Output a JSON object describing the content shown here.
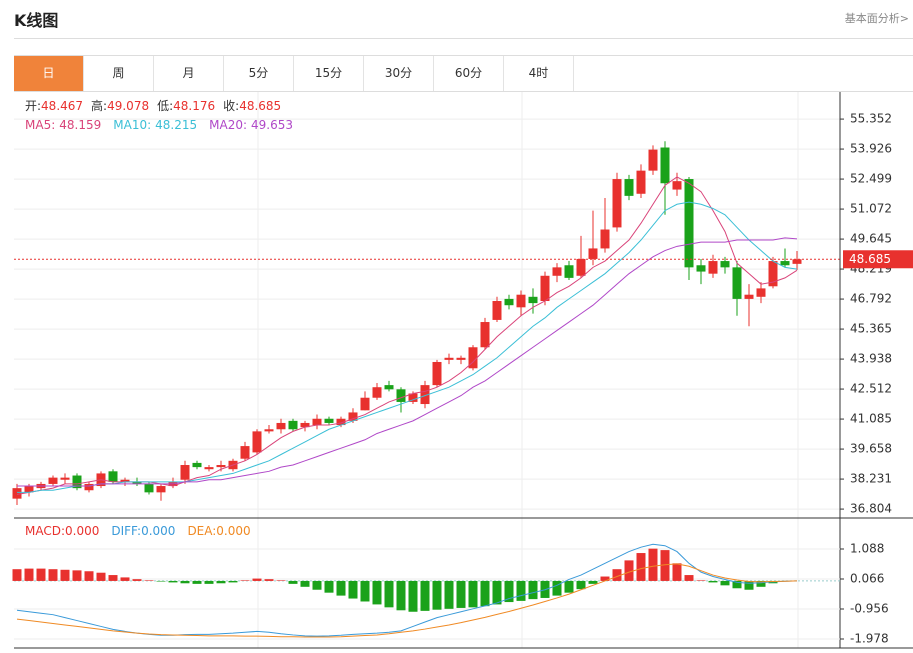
{
  "header": {
    "title": "K线图",
    "link": "基本面分析>"
  },
  "tabs": [
    "日",
    "周",
    "月",
    "5分",
    "15分",
    "30分",
    "60分",
    "4时"
  ],
  "active_tab": 0,
  "chart_data": [
    {
      "type": "candlestick",
      "ohlc_labels": [
        "开:",
        "高:",
        "低:",
        "收:"
      ],
      "up_color": "#e8312e",
      "down_color": "#1aa21a",
      "open": [
        37.3,
        37.6,
        37.8,
        38.0,
        38.2,
        38.4,
        37.7,
        37.9,
        38.6,
        38.1,
        38.1,
        38.0,
        37.6,
        37.9,
        38.2,
        39.0,
        38.7,
        38.8,
        38.7,
        39.2,
        39.5,
        40.5,
        40.6,
        41.0,
        40.7,
        40.8,
        41.1,
        40.8,
        41.0,
        41.5,
        42.1,
        42.7,
        42.5,
        41.9,
        41.8,
        42.7,
        43.9,
        43.9,
        43.5,
        44.5,
        45.8,
        46.8,
        46.4,
        46.9,
        46.7,
        47.9,
        48.4,
        47.9,
        48.7,
        49.2,
        50.2,
        52.5,
        51.8,
        52.9,
        54.0,
        52.0,
        52.5,
        48.4,
        48.0,
        48.6,
        48.3,
        46.8,
        46.9,
        47.4,
        48.6,
        48.467
      ],
      "high": [
        38.0,
        38.0,
        38.1,
        38.4,
        38.5,
        38.5,
        38.1,
        38.6,
        38.7,
        38.3,
        38.3,
        38.1,
        38.0,
        38.3,
        39.1,
        39.1,
        38.9,
        39.1,
        39.2,
        40.0,
        40.6,
        40.8,
        41.1,
        41.1,
        41.0,
        41.3,
        41.2,
        41.2,
        41.6,
        42.4,
        42.8,
        42.9,
        42.6,
        42.4,
        42.9,
        43.9,
        44.2,
        44.1,
        44.6,
        45.9,
        46.9,
        47.0,
        47.2,
        47.3,
        48.1,
        48.5,
        48.6,
        49.8,
        51.0,
        51.6,
        52.8,
        52.7,
        53.2,
        54.1,
        54.3,
        52.8,
        52.6,
        48.7,
        48.9,
        48.8,
        48.6,
        47.5,
        47.6,
        48.8,
        49.2,
        49.078
      ],
      "low": [
        37.0,
        37.4,
        37.7,
        37.9,
        38.0,
        37.7,
        37.6,
        37.8,
        38.0,
        37.9,
        37.9,
        37.5,
        37.2,
        37.8,
        38.0,
        38.7,
        38.6,
        38.6,
        38.6,
        39.1,
        39.4,
        40.4,
        40.4,
        40.5,
        40.5,
        40.6,
        40.8,
        40.7,
        40.9,
        41.5,
        42.0,
        42.4,
        41.4,
        41.8,
        41.6,
        42.6,
        43.7,
        43.7,
        43.4,
        44.4,
        45.7,
        46.3,
        46.0,
        46.1,
        46.5,
        47.6,
        47.7,
        47.8,
        48.4,
        49.0,
        50.0,
        51.5,
        51.6,
        52.7,
        50.8,
        51.7,
        47.7,
        47.5,
        47.8,
        48.0,
        46.0,
        45.5,
        46.6,
        47.3,
        48.3,
        48.176
      ],
      "close": [
        37.8,
        37.9,
        38.0,
        38.3,
        38.3,
        37.8,
        38.0,
        38.5,
        38.1,
        38.2,
        38.0,
        37.6,
        37.9,
        38.1,
        38.9,
        38.8,
        38.8,
        38.9,
        39.1,
        39.8,
        40.5,
        40.6,
        40.9,
        40.6,
        40.9,
        41.1,
        40.9,
        41.1,
        41.4,
        42.1,
        42.6,
        42.5,
        41.9,
        42.3,
        42.7,
        43.8,
        44.0,
        44.0,
        44.5,
        45.7,
        46.7,
        46.5,
        47.0,
        46.6,
        47.9,
        48.3,
        47.8,
        48.7,
        49.2,
        50.1,
        52.5,
        51.7,
        52.9,
        53.9,
        52.3,
        52.4,
        48.3,
        48.1,
        48.6,
        48.3,
        46.8,
        47.0,
        47.3,
        48.6,
        48.4,
        48.685
      ],
      "ma": [
        {
          "name": "MA5:",
          "color": "#d9447a",
          "values": [
            37.5,
            37.6,
            37.7,
            37.8,
            38.0,
            38.0,
            38.1,
            38.2,
            38.1,
            38.1,
            38.1,
            38.1,
            38.0,
            37.9,
            38.1,
            38.3,
            38.4,
            38.7,
            38.9,
            39.1,
            39.4,
            39.8,
            40.2,
            40.5,
            40.7,
            40.8,
            40.8,
            40.9,
            41.1,
            41.3,
            41.6,
            41.9,
            42.1,
            42.3,
            42.4,
            42.6,
            42.9,
            43.3,
            43.8,
            44.4,
            45.0,
            45.5,
            46.0,
            46.4,
            46.7,
            47.1,
            47.4,
            47.8,
            48.3,
            48.6,
            49.1,
            49.6,
            50.4,
            51.3,
            52.2,
            52.6,
            52.3,
            51.9,
            51.0,
            50.0,
            48.5,
            48.0,
            47.5,
            47.6,
            47.8,
            48.159
          ]
        },
        {
          "name": "MA10:",
          "color": "#3bbfd6",
          "values": [
            37.6,
            37.6,
            37.7,
            37.7,
            37.8,
            37.9,
            37.9,
            38.0,
            38.0,
            38.1,
            38.1,
            38.1,
            38.1,
            38.1,
            38.1,
            38.2,
            38.3,
            38.4,
            38.5,
            38.7,
            38.9,
            39.1,
            39.4,
            39.7,
            40.0,
            40.3,
            40.6,
            40.8,
            41.0,
            41.2,
            41.4,
            41.6,
            41.8,
            42.0,
            42.2,
            42.4,
            42.6,
            42.9,
            43.2,
            43.6,
            44.0,
            44.5,
            45.0,
            45.5,
            45.9,
            46.4,
            46.8,
            47.2,
            47.6,
            48.0,
            48.5,
            49.0,
            49.6,
            50.3,
            51.0,
            51.3,
            51.4,
            51.3,
            51.1,
            50.8,
            50.2,
            49.6,
            49.1,
            48.6,
            48.3,
            48.215
          ]
        },
        {
          "name": "MA20:",
          "color": "#b048c8",
          "values": [
            37.9,
            37.9,
            37.9,
            37.9,
            37.9,
            37.9,
            37.9,
            38.0,
            38.0,
            38.0,
            38.0,
            38.0,
            38.0,
            38.0,
            38.1,
            38.1,
            38.2,
            38.2,
            38.3,
            38.4,
            38.5,
            38.6,
            38.8,
            38.9,
            39.1,
            39.3,
            39.5,
            39.7,
            39.9,
            40.1,
            40.4,
            40.6,
            40.8,
            41.0,
            41.3,
            41.6,
            41.9,
            42.2,
            42.6,
            42.9,
            43.3,
            43.7,
            44.1,
            44.5,
            44.9,
            45.3,
            45.7,
            46.1,
            46.5,
            47.0,
            47.5,
            48.0,
            48.4,
            48.8,
            49.1,
            49.3,
            49.4,
            49.5,
            49.5,
            49.5,
            49.6,
            49.6,
            49.6,
            49.6,
            49.7,
            49.653
          ]
        }
      ],
      "last_color": "#e8312e",
      "ylim": [
        36.38,
        56.64
      ],
      "yticks": [
        36.804,
        38.231,
        39.658,
        41.085,
        42.512,
        43.938,
        45.365,
        46.792,
        48.219,
        49.645,
        51.072,
        52.499,
        53.926,
        55.352
      ],
      "grid": true
    },
    {
      "type": "macd",
      "legend": [
        {
          "text": "MACD:0.000",
          "color": "#e8312e"
        },
        {
          "text": "DIFF:0.000",
          "color": "#3a9ad9"
        },
        {
          "text": "DEA:0.000",
          "color": "#f08a24"
        }
      ],
      "up_color": "#e8312e",
      "down_color": "#1aa21a",
      "macd": [
        0.4,
        0.42,
        0.42,
        0.4,
        0.38,
        0.36,
        0.33,
        0.28,
        0.2,
        0.12,
        0.06,
        0.02,
        -0.02,
        -0.05,
        -0.08,
        -0.1,
        -0.1,
        -0.08,
        -0.05,
        0.02,
        0.08,
        0.06,
        0.02,
        -0.1,
        -0.2,
        -0.3,
        -0.4,
        -0.5,
        -0.6,
        -0.7,
        -0.8,
        -0.9,
        -1.0,
        -1.05,
        -1.02,
        -0.98,
        -0.95,
        -0.92,
        -0.9,
        -0.86,
        -0.8,
        -0.72,
        -0.68,
        -0.62,
        -0.58,
        -0.5,
        -0.4,
        -0.28,
        -0.1,
        0.15,
        0.4,
        0.7,
        0.95,
        1.1,
        1.05,
        0.6,
        0.2,
        0.02,
        -0.05,
        -0.15,
        -0.25,
        -0.3,
        -0.2,
        -0.08,
        -0.02,
        0
      ],
      "diff": [
        -1.0,
        -1.05,
        -1.1,
        -1.15,
        -1.25,
        -1.35,
        -1.45,
        -1.55,
        -1.65,
        -1.72,
        -1.78,
        -1.82,
        -1.85,
        -1.85,
        -1.83,
        -1.82,
        -1.82,
        -1.8,
        -1.78,
        -1.75,
        -1.72,
        -1.75,
        -1.8,
        -1.84,
        -1.87,
        -1.88,
        -1.87,
        -1.85,
        -1.82,
        -1.8,
        -1.78,
        -1.75,
        -1.7,
        -1.55,
        -1.4,
        -1.25,
        -1.15,
        -1.05,
        -0.95,
        -0.85,
        -0.75,
        -0.6,
        -0.5,
        -0.4,
        -0.3,
        -0.15,
        0.05,
        0.2,
        0.4,
        0.6,
        0.8,
        1.0,
        1.15,
        1.25,
        1.2,
        1.0,
        0.6,
        0.3,
        0.15,
        0.05,
        -0.05,
        -0.08,
        -0.06,
        -0.03,
        -0.01,
        0
      ],
      "dea": [
        -1.3,
        -1.35,
        -1.4,
        -1.45,
        -1.5,
        -1.55,
        -1.6,
        -1.65,
        -1.7,
        -1.74,
        -1.78,
        -1.81,
        -1.83,
        -1.84,
        -1.85,
        -1.86,
        -1.87,
        -1.87,
        -1.87,
        -1.88,
        -1.88,
        -1.89,
        -1.9,
        -1.9,
        -1.91,
        -1.91,
        -1.91,
        -1.9,
        -1.88,
        -1.86,
        -1.84,
        -1.8,
        -1.75,
        -1.7,
        -1.64,
        -1.57,
        -1.5,
        -1.42,
        -1.33,
        -1.24,
        -1.14,
        -1.04,
        -0.93,
        -0.82,
        -0.7,
        -0.58,
        -0.45,
        -0.3,
        -0.15,
        0.0,
        0.15,
        0.3,
        0.42,
        0.5,
        0.55,
        0.58,
        0.5,
        0.35,
        0.2,
        0.1,
        0.03,
        -0.02,
        -0.03,
        -0.02,
        -0.01,
        0
      ],
      "ylim": [
        -2.285,
        2.076
      ],
      "yticks": [
        -1.978,
        -0.956,
        0.066,
        1.088
      ]
    }
  ]
}
